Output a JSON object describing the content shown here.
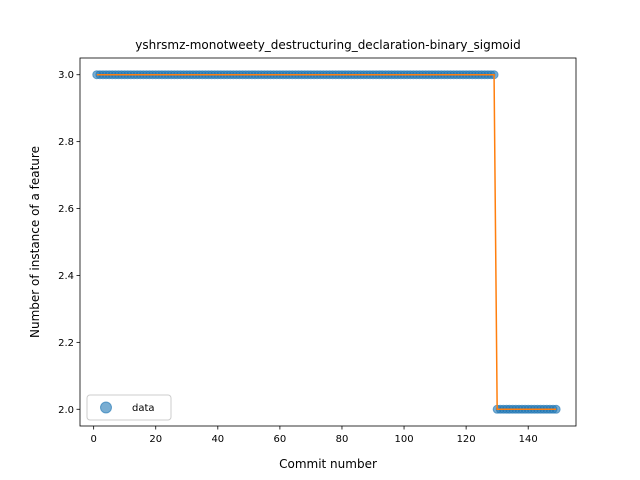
{
  "chart_data": {
    "type": "scatter",
    "title": "yshrsmz-monotweety_destructuring_declaration-binary_sigmoid",
    "xlabel": "Commit number",
    "ylabel": "Number of instance of a feature",
    "xlim": [
      -4.4,
      155.4
    ],
    "ylim": [
      1.95,
      3.05
    ],
    "xticks": [
      0,
      20,
      40,
      60,
      80,
      100,
      120,
      140
    ],
    "yticks": [
      2.0,
      2.2,
      2.4,
      2.6,
      2.8,
      3.0
    ],
    "ytick_labels": [
      "2.0",
      "2.2",
      "2.4",
      "2.6",
      "2.8",
      "3.0"
    ],
    "legend": {
      "entries": [
        "data"
      ],
      "placement": "lower-left"
    },
    "series": [
      {
        "name": "data",
        "kind": "scatter",
        "color": "#1f77b4",
        "segments": [
          {
            "x_start": 1,
            "x_end": 129,
            "y": 3.0
          },
          {
            "x_start": 130,
            "x_end": 149,
            "y": 2.0
          }
        ]
      },
      {
        "kind": "line",
        "color": "#ff7f0e",
        "points": [
          [
            1,
            3.0
          ],
          [
            129,
            3.0
          ],
          [
            130,
            2.0
          ],
          [
            149,
            2.0
          ]
        ]
      }
    ]
  }
}
